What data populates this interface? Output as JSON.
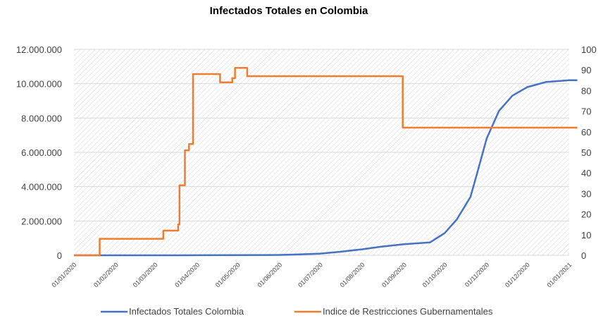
{
  "chart_data": {
    "type": "line",
    "title": "Infectados Totales en Colombia",
    "xlabel": "",
    "ylabel": "",
    "x_ticks": [
      "01/01/2020",
      "01/02/2020",
      "01/03/2020",
      "01/04/2020",
      "01/05/2020",
      "01/06/2020",
      "01/07/2020",
      "01/08/2020",
      "01/09/2020",
      "01/10/2020",
      "01/11/2020",
      "01/12/2020",
      "01/01/2021"
    ],
    "y_left": {
      "ylim": [
        0,
        12000000
      ],
      "tick_labels": [
        "0",
        "2.000.000",
        "4.000.000",
        "6.000.000",
        "8.000.000",
        "10.000.000",
        "12.000.000"
      ]
    },
    "y_right": {
      "ylim": [
        0,
        100
      ],
      "tick_labels": [
        "0",
        "10",
        "20",
        "30",
        "40",
        "50",
        "60",
        "70",
        "80",
        "90",
        "100"
      ]
    },
    "grid": true,
    "legend_position": "bottom",
    "series": [
      {
        "name": "Infectados Totales Colombia",
        "axis": "left",
        "color": "#4472C4",
        "x": [
          "2020-01-01",
          "2020-02-01",
          "2020-03-01",
          "2020-03-31",
          "2020-05-01",
          "2020-06-01",
          "2020-06-15",
          "2020-07-01",
          "2020-07-15",
          "2020-08-01",
          "2020-08-15",
          "2020-09-01",
          "2020-09-20",
          "2020-10-01",
          "2020-10-10",
          "2020-10-20",
          "2020-10-25",
          "2020-11-01",
          "2020-11-10",
          "2020-11-20",
          "2020-12-01",
          "2020-12-15",
          "2021-01-01",
          "2021-01-07"
        ],
        "y": [
          0,
          0,
          0,
          5000,
          10000,
          20000,
          50000,
          100000,
          200000,
          350000,
          500000,
          650000,
          750000,
          1300000,
          2100000,
          3400000,
          4800000,
          6800000,
          8400000,
          9300000,
          9800000,
          10100000,
          10200000,
          10200000
        ]
      },
      {
        "name": "Indice de Restricciones Gubernamentales",
        "axis": "right",
        "color": "#ED7D31",
        "step": true,
        "x": [
          "2020-01-01",
          "2020-01-19",
          "2020-01-20",
          "2020-03-06",
          "2020-03-07",
          "2020-03-18",
          "2020-03-19",
          "2020-03-21",
          "2020-03-23",
          "2020-03-26",
          "2020-03-29",
          "2020-03-30",
          "2020-04-18",
          "2020-04-27",
          "2020-04-29",
          "2020-05-05",
          "2020-05-08",
          "2020-08-30",
          "2020-08-31",
          "2021-01-07"
        ],
        "y": [
          0,
          0,
          8,
          8,
          12,
          15,
          34,
          34,
          51,
          54,
          88,
          88,
          84,
          86,
          91,
          91,
          87,
          87,
          62,
          62
        ]
      }
    ]
  },
  "legend": [
    {
      "label": "Infectados Totales Colombia",
      "color": "#4472C4"
    },
    {
      "label": "Indice de Restricciones Gubernamentales",
      "color": "#ED7D31"
    }
  ]
}
